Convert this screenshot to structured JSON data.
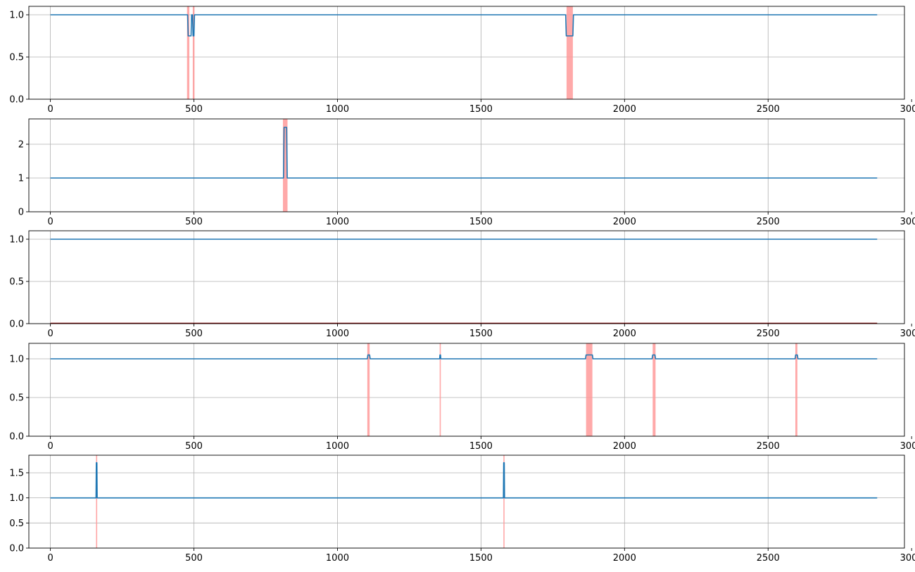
{
  "colors": {
    "line": "#1f77b4",
    "anomaly": "#ff9a9a",
    "grid": "#b0b0b0",
    "axis": "#000000"
  },
  "chart_data": [
    {
      "type": "line",
      "xlim": [
        -75,
        2975
      ],
      "ylim": [
        0,
        1.1
      ],
      "xticks": [
        0,
        500,
        1000,
        1500,
        2000,
        2500,
        3000
      ],
      "yticks": [
        0,
        0.5,
        1
      ],
      "xtick_labels": [
        "0",
        "500",
        "1000",
        "1500",
        "2000",
        "2500",
        "3000"
      ],
      "ytick_labels": [
        "0.0",
        "0.5",
        "1.0"
      ],
      "grid": true,
      "series": [
        {
          "points": [
            [
              0,
              1
            ],
            [
              478,
              1
            ],
            [
              480,
              0.75
            ],
            [
              490,
              0.75
            ],
            [
              492,
              1
            ],
            [
              495,
              1
            ],
            [
              497,
              0.75
            ],
            [
              500,
              0.75
            ],
            [
              502,
              1
            ],
            [
              1795,
              1
            ],
            [
              1797,
              0.75
            ],
            [
              1820,
              0.75
            ],
            [
              1822,
              1
            ],
            [
              2880,
              1
            ]
          ]
        }
      ],
      "anomaly_regions": [
        [
          476,
          484
        ],
        [
          496,
          502
        ],
        [
          1798,
          1820
        ]
      ]
    },
    {
      "type": "line",
      "xlim": [
        -75,
        2975
      ],
      "ylim": [
        0,
        2.75
      ],
      "xticks": [
        0,
        500,
        1000,
        1500,
        2000,
        2500,
        3000
      ],
      "yticks": [
        0,
        1,
        2
      ],
      "xtick_labels": [
        "0",
        "500",
        "1000",
        "1500",
        "2000",
        "2500",
        "3000"
      ],
      "ytick_labels": [
        "0",
        "1",
        "2"
      ],
      "grid": true,
      "series": [
        {
          "points": [
            [
              0,
              1
            ],
            [
              812,
              1
            ],
            [
              814,
              2.5
            ],
            [
              823,
              2.5
            ],
            [
              825,
              1
            ],
            [
              2880,
              1
            ]
          ]
        }
      ],
      "anomaly_regions": [
        [
          810,
          826
        ]
      ]
    },
    {
      "type": "line",
      "xlim": [
        -75,
        2975
      ],
      "ylim": [
        0,
        1.1
      ],
      "xticks": [
        0,
        500,
        1000,
        1500,
        2000,
        2500,
        3000
      ],
      "yticks": [
        0,
        0.5,
        1
      ],
      "xtick_labels": [
        "0",
        "500",
        "1000",
        "1500",
        "2000",
        "2500",
        "3000"
      ],
      "ytick_labels": [
        "0.0",
        "0.5",
        "1.0"
      ],
      "grid": true,
      "series": [
        {
          "points": [
            [
              0,
              1
            ],
            [
              2880,
              1
            ]
          ]
        }
      ],
      "anomaly_regions": [],
      "baseline": {
        "range": [
          0,
          2880
        ],
        "color": "#8b0000"
      }
    },
    {
      "type": "line",
      "xlim": [
        -75,
        2975
      ],
      "ylim": [
        0,
        1.2
      ],
      "xticks": [
        0,
        500,
        1000,
        1500,
        2000,
        2500,
        3000
      ],
      "yticks": [
        0,
        0.5,
        1
      ],
      "xtick_labels": [
        "0",
        "500",
        "1000",
        "1500",
        "2000",
        "2500",
        "3000"
      ],
      "ytick_labels": [
        "0.0",
        "0.5",
        "1.0"
      ],
      "grid": true,
      "series": [
        {
          "points": [
            [
              0,
              1
            ],
            [
              1104,
              1
            ],
            [
              1106,
              1.05
            ],
            [
              1112,
              1.05
            ],
            [
              1114,
              1
            ],
            [
              1356,
              1
            ],
            [
              1357,
              1.05
            ],
            [
              1359,
              1.05
            ],
            [
              1360,
              1
            ],
            [
              1864,
              1
            ],
            [
              1866,
              1.05
            ],
            [
              1888,
              1.05
            ],
            [
              1890,
              1
            ],
            [
              2096,
              1
            ],
            [
              2098,
              1.05
            ],
            [
              2106,
              1.05
            ],
            [
              2108,
              1
            ],
            [
              2594,
              1
            ],
            [
              2596,
              1.05
            ],
            [
              2602,
              1.05
            ],
            [
              2604,
              1
            ],
            [
              2880,
              1
            ]
          ]
        }
      ],
      "anomaly_regions": [
        [
          1104,
          1112
        ],
        [
          1356,
          1360
        ],
        [
          1866,
          1888
        ],
        [
          2098,
          2108
        ],
        [
          2595,
          2602
        ]
      ]
    },
    {
      "type": "line",
      "xlim": [
        -75,
        2975
      ],
      "ylim": [
        0,
        1.85
      ],
      "xticks": [
        0,
        500,
        1000,
        1500,
        2000,
        2500,
        3000
      ],
      "yticks": [
        0,
        0.5,
        1,
        1.5
      ],
      "xtick_labels": [
        "0",
        "500",
        "1000",
        "1500",
        "2000",
        "2500",
        "3000"
      ],
      "ytick_labels": [
        "0.0",
        "0.5",
        "1.0",
        "1.5"
      ],
      "grid": true,
      "series": [
        {
          "points": [
            [
              0,
              1
            ],
            [
              159,
              1
            ],
            [
              160,
              1.7
            ],
            [
              162,
              1.7
            ],
            [
              163,
              1
            ],
            [
              1578,
              1
            ],
            [
              1579,
              1.7
            ],
            [
              1581,
              1.7
            ],
            [
              1582,
              1
            ],
            [
              2880,
              1
            ]
          ]
        }
      ],
      "anomaly_regions": [
        [
          159,
          163
        ],
        [
          1578,
          1582
        ]
      ]
    }
  ]
}
